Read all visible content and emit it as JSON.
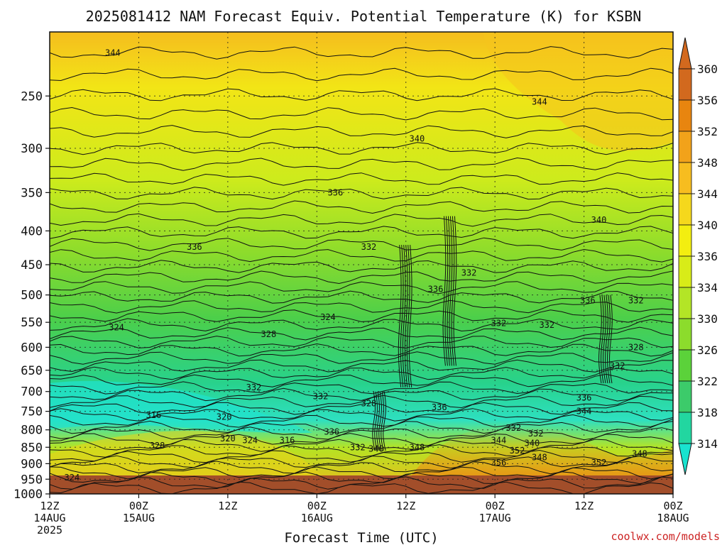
{
  "chart_data": {
    "type": "heatmap",
    "title": "2025081412 NAM Forecast Equiv. Potential Temperature (K) for KSBN",
    "xlabel": "Forecast Time (UTC)",
    "ylabel": "",
    "y_axis": {
      "scale": "log",
      "direction": "decreasing-upward",
      "range": [
        1000,
        200
      ],
      "ticks": [
        250,
        300,
        350,
        400,
        450,
        500,
        550,
        600,
        650,
        700,
        750,
        800,
        850,
        900,
        950,
        1000
      ]
    },
    "x_axis": {
      "range": [
        "2025-08-14 12Z",
        "2025-08-18 00Z"
      ],
      "ticks": [
        {
          "hours": 0,
          "lines": [
            "12Z",
            "14AUG",
            "2025"
          ]
        },
        {
          "hours": 12,
          "lines": [
            "00Z",
            "15AUG"
          ]
        },
        {
          "hours": 24,
          "lines": [
            "12Z"
          ]
        },
        {
          "hours": 36,
          "lines": [
            "00Z",
            "16AUG"
          ]
        },
        {
          "hours": 48,
          "lines": [
            "12Z"
          ]
        },
        {
          "hours": 60,
          "lines": [
            "00Z",
            "17AUG"
          ]
        },
        {
          "hours": 72,
          "lines": [
            "12Z"
          ]
        },
        {
          "hours": 84,
          "lines": [
            "00Z",
            "18AUG"
          ]
        }
      ]
    },
    "grid": true,
    "colorbar": {
      "ticks": [
        360,
        356,
        352,
        348,
        344,
        340,
        336,
        334,
        330,
        326,
        322,
        318,
        314
      ],
      "colors": [
        "#d2691e",
        "#e8850f",
        "#f2a21a",
        "#f7bd1f",
        "#f5d81c",
        "#f3ee10",
        "#d8ec18",
        "#b3e526",
        "#8cdc2c",
        "#5bd23a",
        "#3ccb6a",
        "#22d6a0",
        "#19e3cf"
      ],
      "placement": "right"
    },
    "contour_labels": [
      {
        "value": "344",
        "x": 8.5,
        "p": 215
      },
      {
        "value": "344",
        "x": 66,
        "p": 255
      },
      {
        "value": "340",
        "x": 49.5,
        "p": 290
      },
      {
        "value": "336",
        "x": 38.5,
        "p": 350
      },
      {
        "value": "340",
        "x": 74,
        "p": 385
      },
      {
        "value": "336",
        "x": 19.5,
        "p": 423
      },
      {
        "value": "332",
        "x": 43,
        "p": 423
      },
      {
        "value": "332",
        "x": 56.5,
        "p": 463
      },
      {
        "value": "336",
        "x": 52,
        "p": 490
      },
      {
        "value": "336",
        "x": 72.5,
        "p": 510
      },
      {
        "value": "332",
        "x": 79,
        "p": 510
      },
      {
        "value": "324",
        "x": 9,
        "p": 560
      },
      {
        "value": "324",
        "x": 37.5,
        "p": 540
      },
      {
        "value": "328",
        "x": 29.5,
        "p": 573
      },
      {
        "value": "332",
        "x": 60.5,
        "p": 552
      },
      {
        "value": "332",
        "x": 67,
        "p": 555
      },
      {
        "value": "328",
        "x": 79,
        "p": 600
      },
      {
        "value": "332",
        "x": 76.5,
        "p": 640
      },
      {
        "value": "332",
        "x": 27.5,
        "p": 690
      },
      {
        "value": "332",
        "x": 36.5,
        "p": 712
      },
      {
        "value": "328",
        "x": 43,
        "p": 730
      },
      {
        "value": "336",
        "x": 52.5,
        "p": 740
      },
      {
        "value": "336",
        "x": 72,
        "p": 715
      },
      {
        "value": "344",
        "x": 72,
        "p": 750
      },
      {
        "value": "316",
        "x": 14,
        "p": 760
      },
      {
        "value": "320",
        "x": 23.5,
        "p": 765
      },
      {
        "value": "336",
        "x": 38,
        "p": 805
      },
      {
        "value": "332",
        "x": 62.5,
        "p": 795
      },
      {
        "value": "332",
        "x": 65.5,
        "p": 810
      },
      {
        "value": "320",
        "x": 24,
        "p": 825
      },
      {
        "value": "324",
        "x": 27,
        "p": 830
      },
      {
        "value": "316",
        "x": 32,
        "p": 830
      },
      {
        "value": "328",
        "x": 14.5,
        "p": 845
      },
      {
        "value": "344",
        "x": 60.5,
        "p": 830
      },
      {
        "value": "340",
        "x": 65,
        "p": 838
      },
      {
        "value": "332",
        "x": 41.5,
        "p": 850
      },
      {
        "value": "340",
        "x": 44,
        "p": 855
      },
      {
        "value": "348",
        "x": 49.5,
        "p": 850
      },
      {
        "value": "352",
        "x": 63,
        "p": 860
      },
      {
        "value": "348",
        "x": 66,
        "p": 880
      },
      {
        "value": "348",
        "x": 79.5,
        "p": 870
      },
      {
        "value": "356",
        "x": 60.5,
        "p": 897
      },
      {
        "value": "352",
        "x": 74,
        "p": 897
      },
      {
        "value": "324",
        "x": 3,
        "p": 945
      }
    ]
  },
  "credit": "coolwx.com/models"
}
